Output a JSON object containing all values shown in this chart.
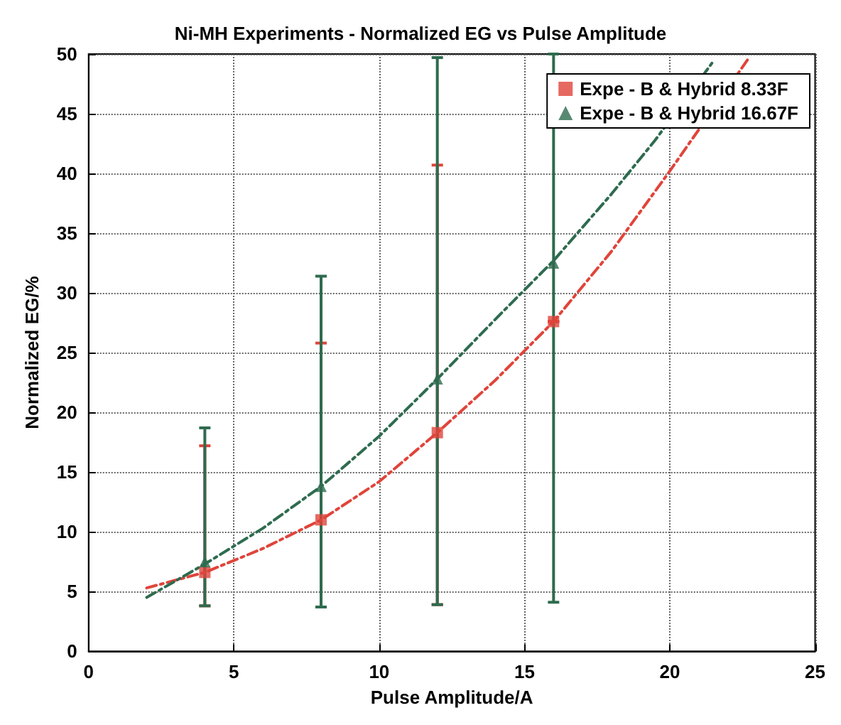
{
  "chart_data": {
    "type": "scatter",
    "title": "Ni-MH Experiments - Normalized EG vs Pulse Amplitude",
    "xlabel": "Pulse Amplitude/A",
    "ylabel": "Normalized EG/%",
    "xlim": [
      0,
      25
    ],
    "xticks": [
      0,
      5,
      10,
      15,
      20,
      25
    ],
    "ylim": [
      0,
      50
    ],
    "yticks": [
      0,
      5,
      10,
      15,
      20,
      25,
      30,
      35,
      40,
      45,
      50
    ],
    "grid": true,
    "legend": "top right",
    "series": [
      {
        "name": "Expe - B & Hybrid 8.33F",
        "marker": "square",
        "color": "#e0443a",
        "x": [
          4,
          8,
          12,
          16
        ],
        "values": [
          6.6,
          11.0,
          18.3,
          27.6
        ],
        "errors": [
          [
            3.8,
            17.2
          ],
          [
            3.7,
            25.8
          ],
          [
            3.9,
            40.7
          ],
          null
        ]
      },
      {
        "name": "Expe - B & Hybrid 16.67F",
        "marker": "triangle",
        "color": "#2e6b4f",
        "x": [
          4,
          8,
          12,
          16
        ],
        "values": [
          7.5,
          13.8,
          22.8,
          32.5
        ],
        "errors": [
          [
            3.8,
            18.7
          ],
          [
            3.7,
            31.4
          ],
          [
            3.9,
            49.7
          ],
          [
            4.1,
            50
          ]
        ]
      },
      {
        "type": "line",
        "marker": "none",
        "line_style": "dashed",
        "color": "#e0443a",
        "x": [
          2,
          4,
          6,
          8,
          10,
          12,
          14,
          16,
          18,
          20,
          22.7
        ],
        "values": [
          5.3,
          6.6,
          8.6,
          11.0,
          14.2,
          18.3,
          22.7,
          27.6,
          33.5,
          40.2,
          49.6
        ]
      },
      {
        "type": "line",
        "marker": "none",
        "line_style": "dashed",
        "color": "#2e6b4f",
        "x": [
          2,
          4,
          6,
          8,
          10,
          12,
          14,
          16,
          18,
          19.5,
          21.5
        ],
        "values": [
          4.5,
          7.3,
          10.3,
          13.8,
          18.0,
          22.8,
          27.8,
          32.7,
          38.3,
          42.8,
          49.4
        ]
      }
    ]
  }
}
